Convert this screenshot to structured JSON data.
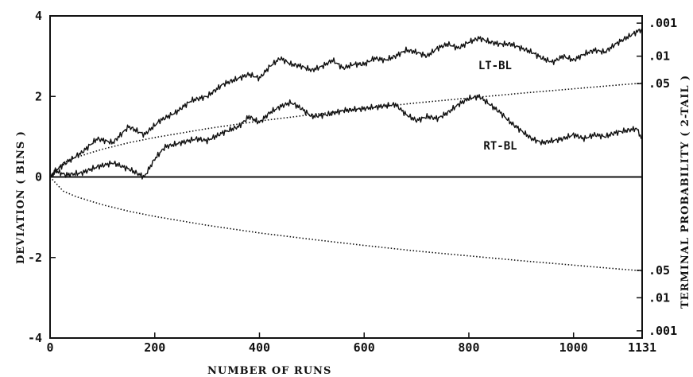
{
  "chart_data": {
    "type": "line",
    "xlabel": "NUMBER  OF  RUNS",
    "ylabel": "DEVIATION  ( BINS )",
    "y2label": "TERMINAL  PROBABILITY  ( 2-TAIL )",
    "xlim": [
      0,
      1131
    ],
    "ylim": [
      -4,
      4
    ],
    "x_ticks": [
      "0",
      "200",
      "400",
      "600",
      "800",
      "1000",
      "1131"
    ],
    "x_tick_values": [
      0,
      200,
      400,
      600,
      800,
      1000,
      1131
    ],
    "y_ticks": [
      "4",
      "2",
      "0",
      "-2",
      "-4"
    ],
    "y_tick_values": [
      4,
      2,
      0,
      -2,
      -4
    ],
    "y2_ticks": [
      ".001",
      ".01",
      ".05",
      ".05",
      ".01",
      ".001"
    ],
    "y2_tick_values": [
      3.82,
      3.0,
      2.32,
      -2.32,
      -3.0,
      -3.82
    ],
    "series": [
      {
        "name": "LT-BL",
        "style": "solid",
        "x": [
          0,
          10,
          30,
          60,
          90,
          120,
          150,
          180,
          210,
          240,
          270,
          300,
          330,
          360,
          380,
          400,
          420,
          440,
          460,
          480,
          500,
          520,
          540,
          560,
          580,
          600,
          620,
          640,
          660,
          680,
          700,
          720,
          740,
          760,
          780,
          800,
          820,
          840,
          860,
          880,
          900,
          920,
          940,
          960,
          980,
          1000,
          1020,
          1040,
          1060,
          1080,
          1100,
          1120,
          1131
        ],
        "y": [
          0,
          0.15,
          0.35,
          0.6,
          0.95,
          0.85,
          1.25,
          1.05,
          1.4,
          1.6,
          1.9,
          2.0,
          2.3,
          2.45,
          2.55,
          2.45,
          2.75,
          2.95,
          2.8,
          2.75,
          2.65,
          2.75,
          2.9,
          2.7,
          2.8,
          2.8,
          2.95,
          2.9,
          3.0,
          3.15,
          3.1,
          3.0,
          3.2,
          3.3,
          3.2,
          3.35,
          3.45,
          3.35,
          3.3,
          3.3,
          3.2,
          3.1,
          2.95,
          2.85,
          3.0,
          2.9,
          3.05,
          3.15,
          3.1,
          3.3,
          3.45,
          3.6,
          3.65
        ]
      },
      {
        "name": "RT-BL",
        "style": "solid",
        "x": [
          0,
          10,
          30,
          60,
          90,
          120,
          150,
          180,
          200,
          220,
          250,
          280,
          300,
          330,
          360,
          380,
          400,
          420,
          440,
          460,
          480,
          500,
          530,
          560,
          600,
          630,
          660,
          680,
          700,
          720,
          740,
          760,
          780,
          800,
          820,
          840,
          860,
          880,
          900,
          920,
          940,
          960,
          980,
          1000,
          1020,
          1040,
          1060,
          1080,
          1100,
          1120,
          1131
        ],
        "y": [
          0,
          0.15,
          0.05,
          0.1,
          0.25,
          0.35,
          0.2,
          0.0,
          0.45,
          0.75,
          0.85,
          0.95,
          0.9,
          1.1,
          1.25,
          1.5,
          1.35,
          1.6,
          1.75,
          1.85,
          1.7,
          1.5,
          1.55,
          1.65,
          1.7,
          1.75,
          1.8,
          1.55,
          1.4,
          1.5,
          1.45,
          1.6,
          1.8,
          1.95,
          2.0,
          1.8,
          1.6,
          1.35,
          1.15,
          0.95,
          0.85,
          0.9,
          0.95,
          1.05,
          0.95,
          1.05,
          1.0,
          1.1,
          1.15,
          1.2,
          0.95
        ]
      },
      {
        "name": "",
        "style": "dotted",
        "x": [
          0,
          25,
          50,
          100,
          150,
          200,
          300,
          400,
          500,
          600,
          700,
          800,
          900,
          1000,
          1100,
          1131
        ],
        "y": [
          0,
          0.35,
          0.49,
          0.69,
          0.85,
          0.98,
          1.2,
          1.39,
          1.55,
          1.7,
          1.84,
          1.96,
          2.08,
          2.19,
          2.3,
          2.33
        ]
      },
      {
        "name": "",
        "style": "dotted",
        "x": [
          0,
          25,
          50,
          100,
          150,
          200,
          300,
          400,
          500,
          600,
          700,
          800,
          900,
          1000,
          1100,
          1131
        ],
        "y": [
          0,
          -0.35,
          -0.49,
          -0.69,
          -0.85,
          -0.98,
          -1.2,
          -1.39,
          -1.55,
          -1.7,
          -1.84,
          -1.96,
          -2.08,
          -2.19,
          -2.3,
          -2.33
        ]
      }
    ],
    "annotations": [
      {
        "text": "LT-BL",
        "x": 850,
        "y": 2.68
      },
      {
        "text": "RT-BL",
        "x": 860,
        "y": 0.68
      }
    ],
    "grid": false
  }
}
